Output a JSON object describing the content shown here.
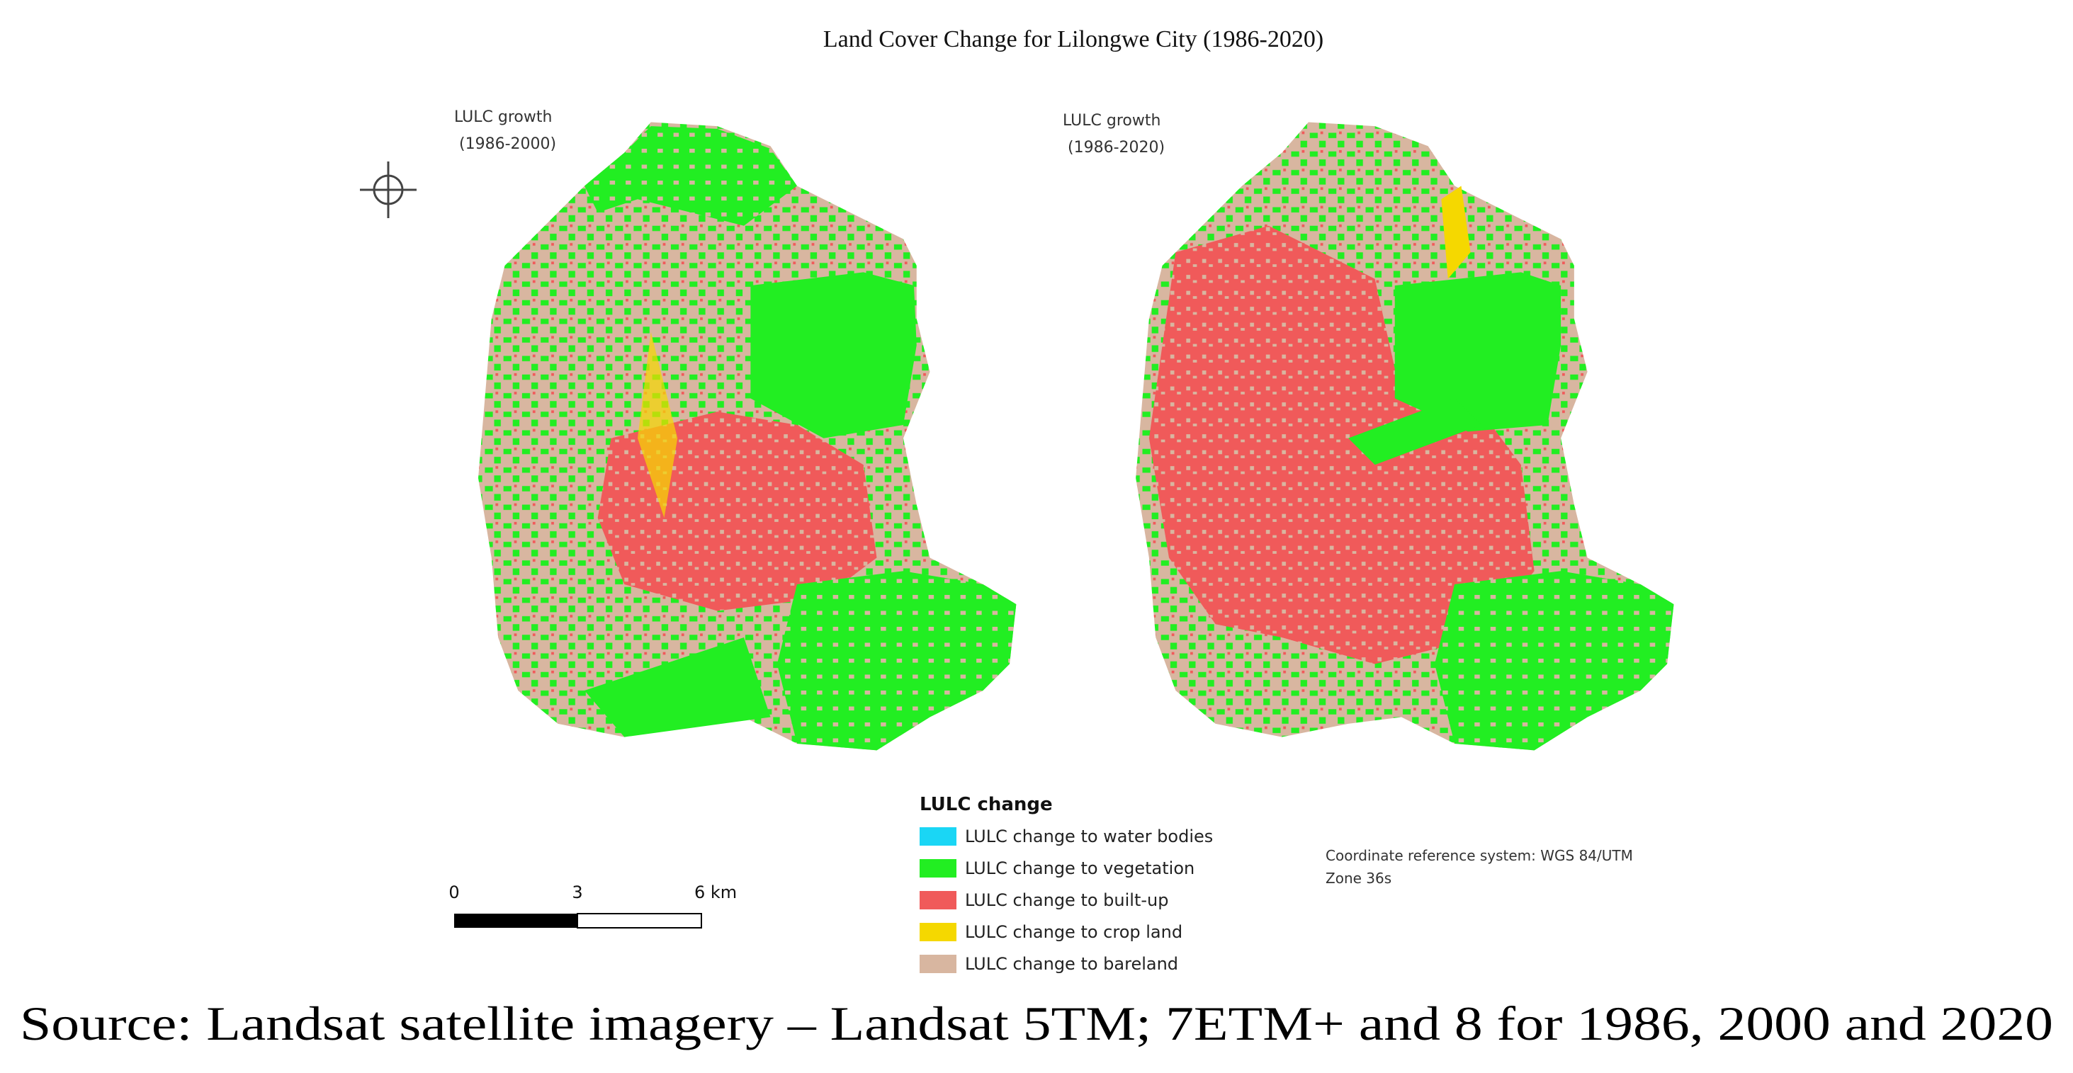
{
  "title": "Land Cover Change for Lilongwe City (1986-2020)",
  "maps": [
    {
      "label": [
        "LULC growth",
        "(1986-2000)"
      ]
    },
    {
      "label": [
        "LULC growth",
        "(1986-2020)"
      ]
    }
  ],
  "legend": {
    "title": "LULC change",
    "items": [
      {
        "label": "LULC change to water bodies",
        "color": "#1ad6f5"
      },
      {
        "label": "LULC change to vegetation",
        "color": "#22ee22"
      },
      {
        "label": "LULC change to built-up",
        "color": "#f05a5a"
      },
      {
        "label": "LULC change to crop land",
        "color": "#f5d800"
      },
      {
        "label": "LULC change to bareland",
        "color": "#d8b6a0"
      }
    ]
  },
  "scale_bar": {
    "labels": [
      "0",
      "3",
      "6 km"
    ]
  },
  "crs": [
    "Coordinate reference system: WGS 84/UTM",
    "Zone 36s"
  ],
  "caption": "Source: Landsat satellite imagery – Landsat 5TM; 7ETM+ and 8 for 1986, 2000 and 2020"
}
